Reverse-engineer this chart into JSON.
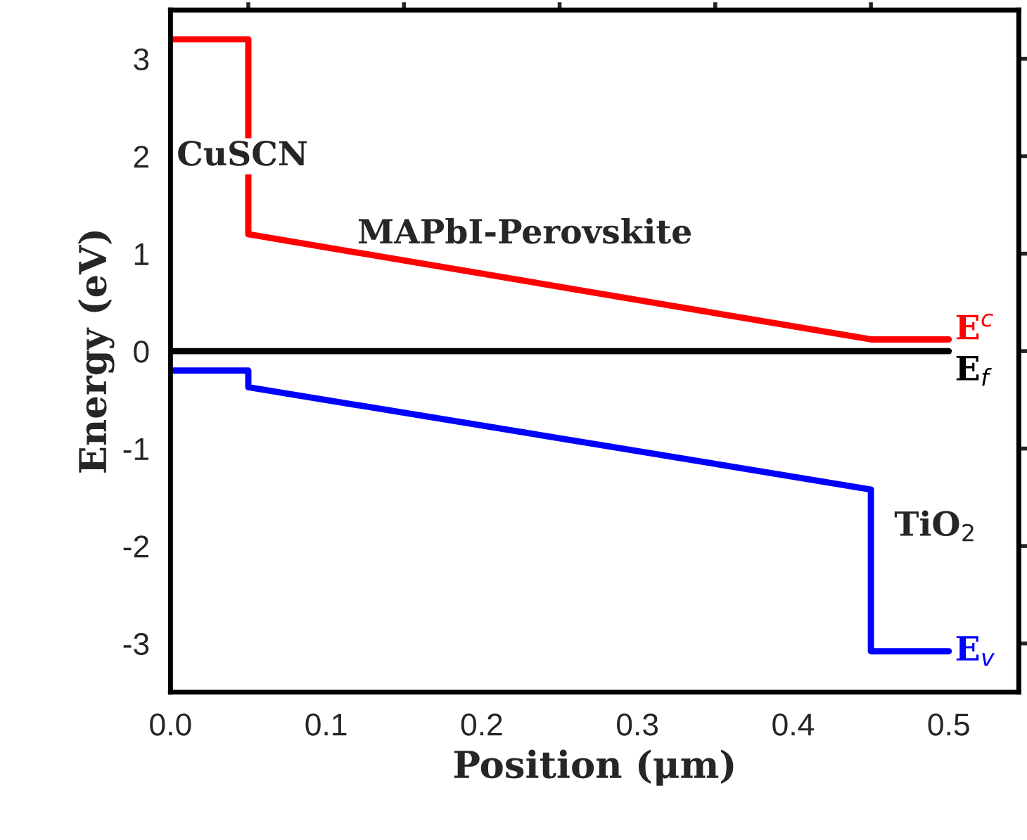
{
  "chart_data": {
    "type": "line",
    "xlabel": "Position (μm)",
    "ylabel": "Energy (eV)",
    "xlim": [
      0,
      0.545
    ],
    "ylim": [
      -3.5,
      3.5
    ],
    "xticks": [
      {
        "value": 0,
        "label": "0.0"
      },
      0.1,
      0.2,
      0.3,
      0.4,
      0.5
    ],
    "yticks": [
      -3,
      -2,
      -1,
      0,
      1,
      2,
      3
    ],
    "grid": false,
    "legend": false,
    "marker": "none",
    "line_style": "solid",
    "series": [
      {
        "name": "E$^{c}$",
        "color": "#ff0000",
        "x": [
          0,
          0.05,
          0.05,
          0.45,
          0.5
        ],
        "values": [
          3.2,
          3.2,
          1.2,
          0.12,
          0.12
        ]
      },
      {
        "name": "E$_{f}$",
        "color": "#000000",
        "x": [
          0,
          0.5
        ],
        "values": [
          0,
          0
        ]
      },
      {
        "name": "E$_{v}$",
        "color": "#0000ff",
        "x": [
          0,
          0.05,
          0.05,
          0.45,
          0.45,
          0.5
        ],
        "values": [
          -0.2,
          -0.2,
          -0.37,
          -1.42,
          -3.08,
          -3.08
        ]
      }
    ],
    "annotations": [
      "CuSCN",
      "MAPbI-Perovskite",
      "TiO$_{2}$"
    ]
  }
}
